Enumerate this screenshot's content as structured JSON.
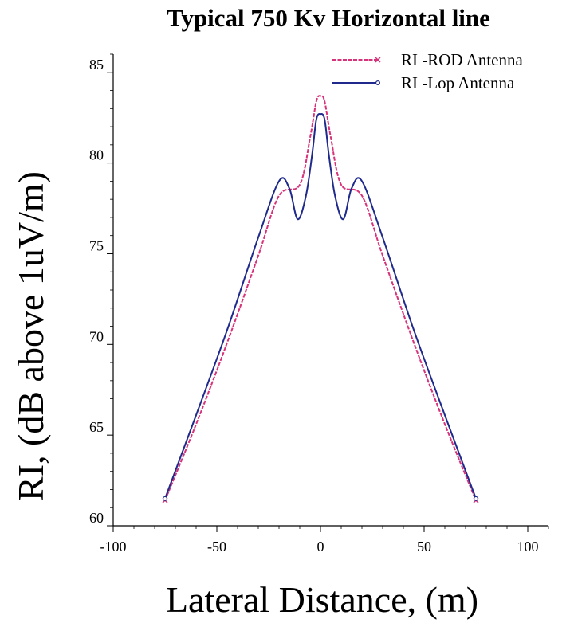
{
  "chart_data": {
    "type": "line",
    "title": "Typical 750 Kv Horizontal line",
    "xlabel": "Lateral Distance, (m)",
    "ylabel": "RI, (dB above 1uV/m)",
    "xlim": [
      -100,
      110
    ],
    "ylim": [
      60,
      86
    ],
    "x_ticks": [
      -100,
      -50,
      0,
      50,
      100
    ],
    "y_ticks": [
      60,
      65,
      70,
      75,
      80,
      85
    ],
    "grid": false,
    "legend_position": "top-right",
    "series": [
      {
        "name": "RI -ROD Antenna",
        "color": "#d6337a",
        "style": "dashed",
        "marker": "x",
        "x": [
          -75,
          -60,
          -45,
          -30,
          -20,
          -10,
          -5,
          -2,
          0,
          2,
          5,
          10,
          20,
          30,
          45,
          60,
          75
        ],
        "y": [
          61.4,
          65.6,
          70.1,
          74.9,
          78.2,
          78.8,
          81.4,
          83.4,
          83.7,
          83.4,
          81.4,
          78.8,
          78.2,
          74.9,
          70.1,
          65.6,
          61.4
        ]
      },
      {
        "name": "RI -Lop Antenna",
        "color": "#1f2a8c",
        "style": "solid",
        "marker": "o",
        "x": [
          -75,
          -60,
          -45,
          -30,
          -20,
          -15,
          -11,
          -7,
          -4,
          -2,
          0,
          2,
          4,
          7,
          11,
          15,
          20,
          30,
          45,
          60,
          75
        ],
        "y": [
          61.5,
          66.1,
          70.8,
          75.9,
          79.0,
          78.6,
          76.9,
          78.2,
          80.5,
          82.4,
          82.7,
          82.4,
          80.5,
          78.2,
          76.9,
          78.6,
          79.0,
          75.9,
          70.8,
          66.1,
          61.5
        ]
      }
    ]
  }
}
